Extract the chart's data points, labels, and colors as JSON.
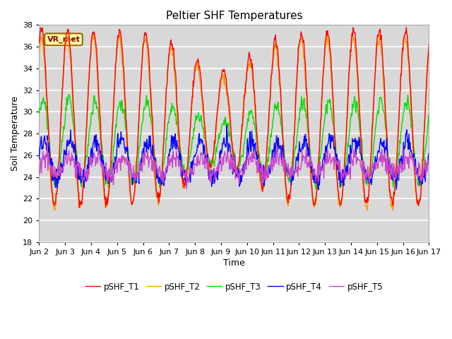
{
  "title": "Peltier SHF Temperatures",
  "xlabel": "Time",
  "ylabel": "Soil Temperature",
  "ylim": [
    18,
    38
  ],
  "yticks": [
    18,
    20,
    22,
    24,
    26,
    28,
    30,
    32,
    34,
    36,
    38
  ],
  "xtick_labels": [
    "Jun 2",
    "Jun 3",
    "Jun 4",
    "Jun 5",
    "Jun 6",
    "Jun 7",
    "Jun 8",
    "Jun 9",
    "Jun 10",
    "Jun 11",
    "Jun 12",
    "Jun 13",
    "Jun 14",
    "Jun 15",
    "Jun 16",
    "Jun 17"
  ],
  "annotation_text": "VR_met",
  "colors": {
    "pSHF_T1": "#ff0000",
    "pSHF_T2": "#ff9900",
    "pSHF_T3": "#00dd00",
    "pSHF_T4": "#0000ff",
    "pSHF_T5": "#cc44cc"
  },
  "bg_color": "#d8d8d8",
  "plot_bg": "#d8d8d8",
  "outer_bg": "#ffffff",
  "grid_color": "#ffffff",
  "title_fontsize": 11,
  "axis_label_fontsize": 9,
  "tick_fontsize": 8,
  "annotation_fontsize": 8,
  "line_width": 1.0
}
